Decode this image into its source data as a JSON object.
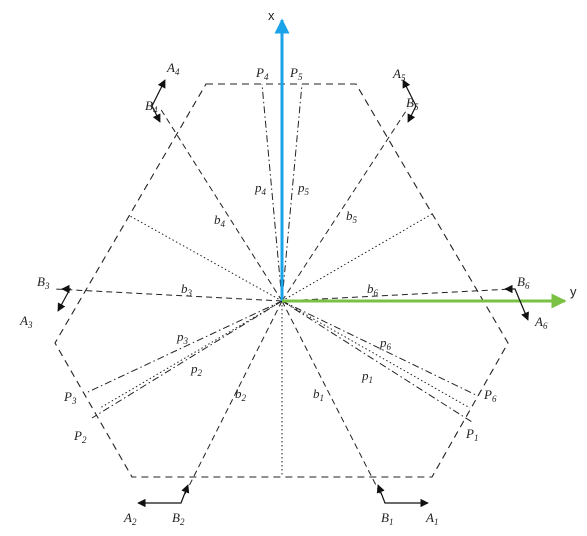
{
  "axes": {
    "x_label": "x",
    "y_label": "y",
    "x_color": "#1aa3e8",
    "y_color": "#7ac143"
  },
  "labels": {
    "A1": {
      "main": "A",
      "sub": "1"
    },
    "B1": {
      "main": "B",
      "sub": "1"
    },
    "A2": {
      "main": "A",
      "sub": "2"
    },
    "B2": {
      "main": "B",
      "sub": "2"
    },
    "A3": {
      "main": "A",
      "sub": "3"
    },
    "B3": {
      "main": "B",
      "sub": "3"
    },
    "A4": {
      "main": "A",
      "sub": "4"
    },
    "B4": {
      "main": "B",
      "sub": "4"
    },
    "A5": {
      "main": "A",
      "sub": "5"
    },
    "B5": {
      "main": "B",
      "sub": "5"
    },
    "A6": {
      "main": "A",
      "sub": "6"
    },
    "B6": {
      "main": "B",
      "sub": "6"
    },
    "P1": {
      "main": "P",
      "sub": "1"
    },
    "P2": {
      "main": "P",
      "sub": "2"
    },
    "P3": {
      "main": "P",
      "sub": "3"
    },
    "P4": {
      "main": "P",
      "sub": "4"
    },
    "P5": {
      "main": "P",
      "sub": "5"
    },
    "P6": {
      "main": "P",
      "sub": "6"
    },
    "b1": {
      "main": "b",
      "sub": "1"
    },
    "b2": {
      "main": "b",
      "sub": "2"
    },
    "b3": {
      "main": "b",
      "sub": "3"
    },
    "b4": {
      "main": "b",
      "sub": "4"
    },
    "b5": {
      "main": "b",
      "sub": "5"
    },
    "b6": {
      "main": "b",
      "sub": "6"
    },
    "p1": {
      "main": "p",
      "sub": "1"
    },
    "p2": {
      "main": "p",
      "sub": "2"
    },
    "p3": {
      "main": "p",
      "sub": "3"
    },
    "p4": {
      "main": "p",
      "sub": "4"
    },
    "p5": {
      "main": "p",
      "sub": "5"
    },
    "p6": {
      "main": "p",
      "sub": "6"
    }
  }
}
